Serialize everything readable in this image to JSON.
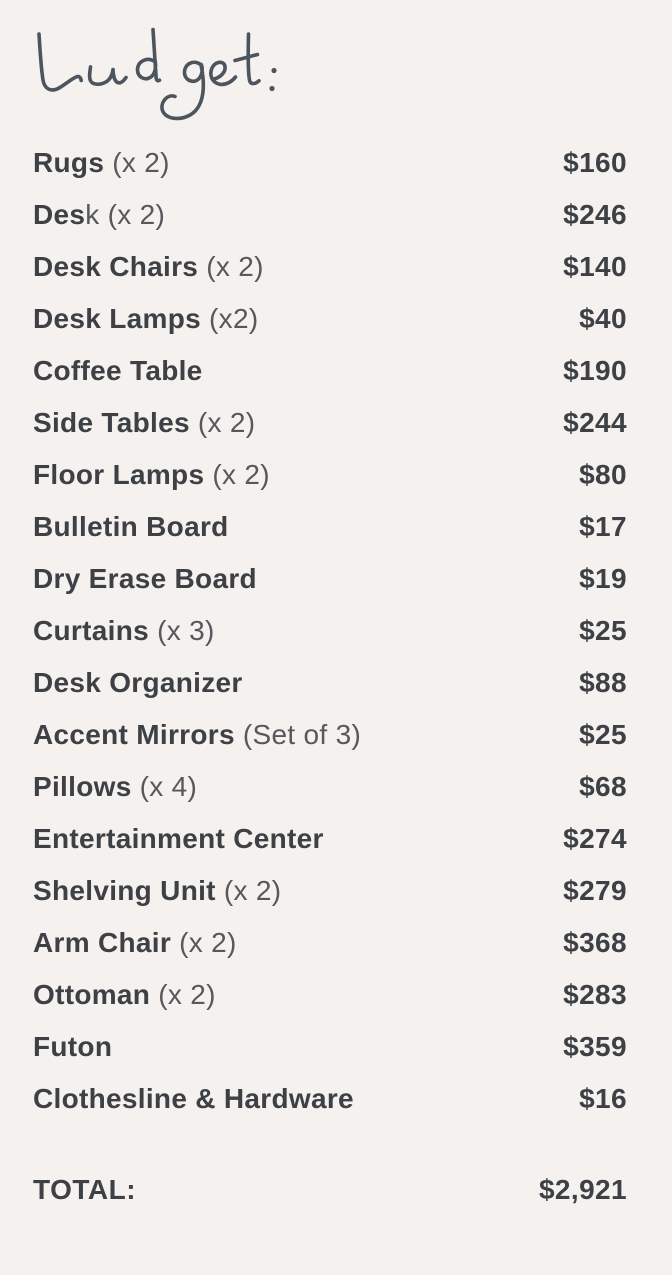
{
  "title": {
    "text": "budget:"
  },
  "list": {
    "rows": [
      {
        "bold": "Rugs",
        "light": " (x 2)",
        "price": "$160"
      },
      {
        "bold": "Des",
        "light": "k (x 2)",
        "price": "$246"
      },
      {
        "bold": "Desk Chairs",
        "light": " (x 2)",
        "price": "$140"
      },
      {
        "bold": "Desk Lamps",
        "light": " (x2)",
        "price": "$40"
      },
      {
        "bold": "Coffee Table",
        "light": "",
        "price": "$190"
      },
      {
        "bold": "Side Tables",
        "light": " (x 2)",
        "price": "$244"
      },
      {
        "bold": "Floor Lamps",
        "light": " (x 2)",
        "price": "$80"
      },
      {
        "bold": "Bulletin Board",
        "light": "",
        "price": "$17"
      },
      {
        "bold": "Dry Erase Board",
        "light": "",
        "price": "$19"
      },
      {
        "bold": "Curtains",
        "light": " (x 3)",
        "price": "$25"
      },
      {
        "bold": "Desk Organizer",
        "light": "",
        "price": "$88"
      },
      {
        "bold": "Accent Mirrors",
        "light": " (Set of 3)",
        "price": "$25"
      },
      {
        "bold": "Pillows",
        "light": " (x 4)",
        "price": "$68"
      },
      {
        "bold": "Entertainment Center",
        "light": "",
        "price": "$274"
      },
      {
        "bold": "Shelving Unit",
        "light": " (x 2)",
        "price": "$279"
      },
      {
        "bold": "Arm Chair",
        "light": " (x 2)",
        "price": "$368"
      },
      {
        "bold": "Ottoman",
        "light": " (x 2)",
        "price": "$283"
      },
      {
        "bold": "Futon",
        "light": "",
        "price": "$359"
      },
      {
        "bold": "Clothesline & Hardware",
        "light": "",
        "price": "$16"
      }
    ]
  },
  "total": {
    "label": "TOTAL:",
    "value": "$2,921"
  },
  "colors": {
    "background": "#f4f1ee",
    "text_dark": "#3d4044",
    "text_light": "#55585c",
    "script": "#4c545e"
  }
}
